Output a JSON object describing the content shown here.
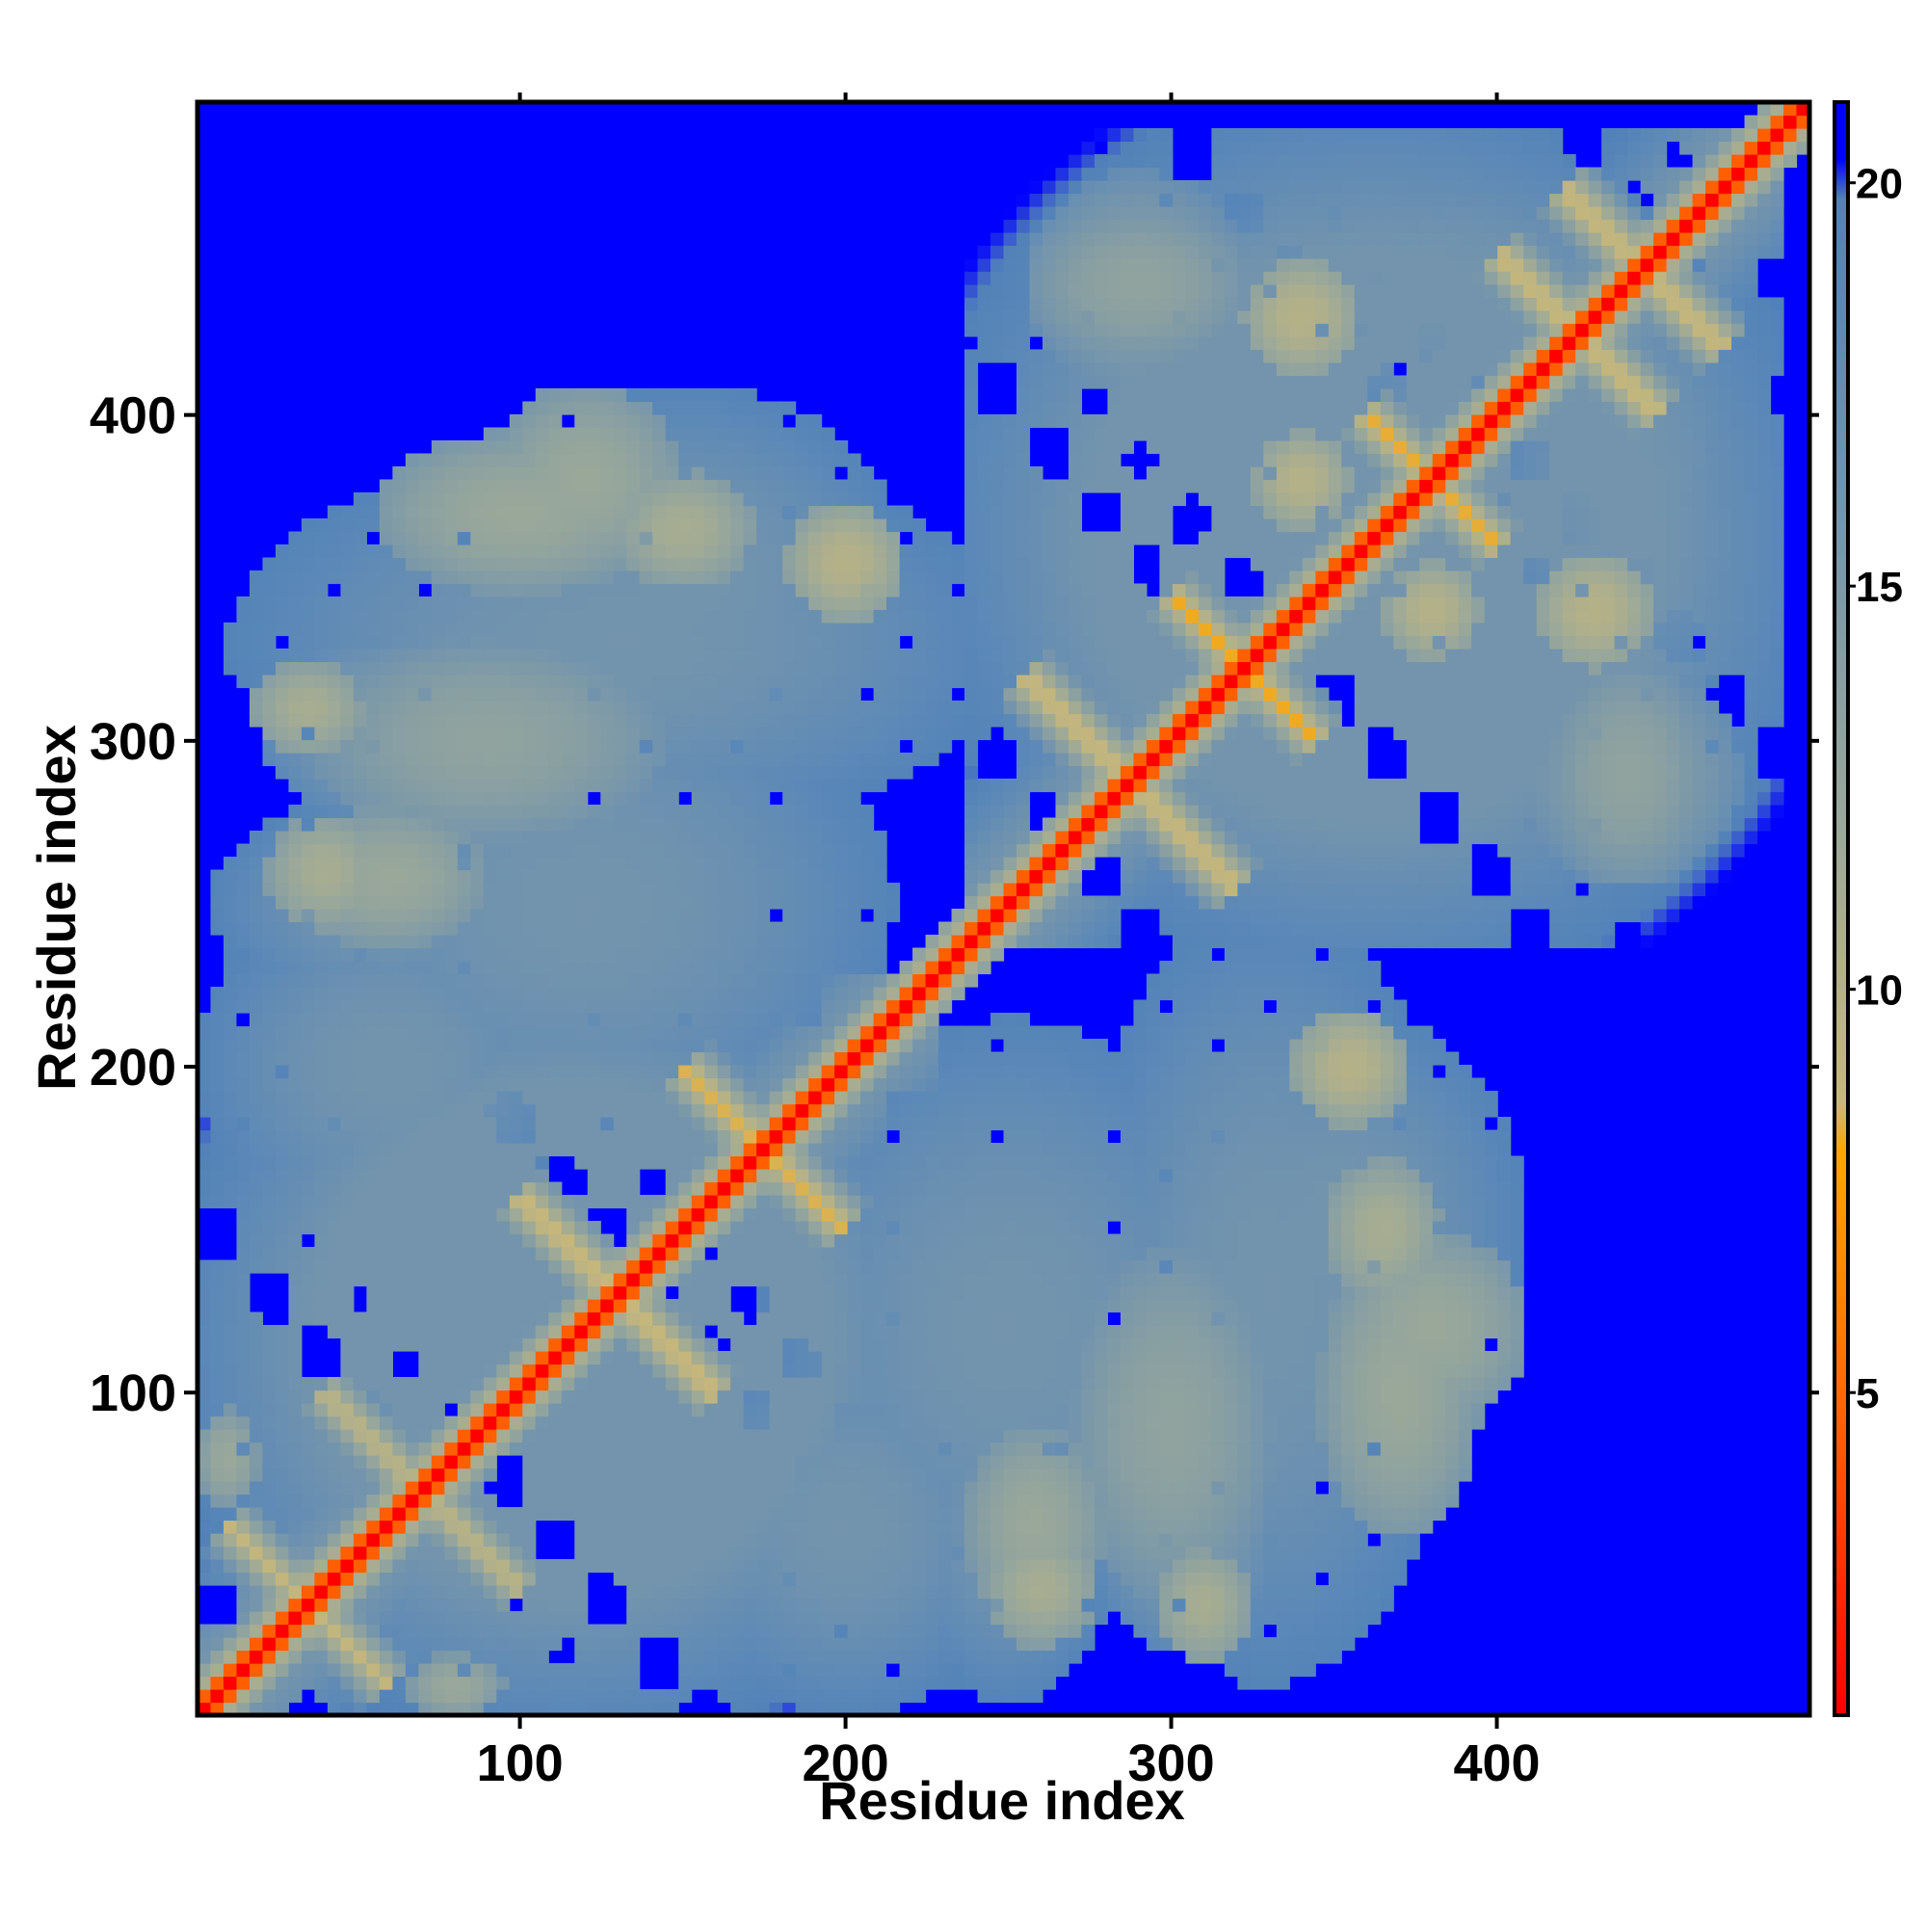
{
  "chart_data": {
    "type": "heatmap",
    "title": "",
    "xlabel": "Residue index",
    "ylabel": "Residue index",
    "xlim": [
      1,
      496
    ],
    "ylim": [
      1,
      496
    ],
    "x_ticks": [
      100,
      200,
      300,
      400
    ],
    "y_ticks": [
      100,
      200,
      300,
      400
    ],
    "colorbar": {
      "range": [
        1,
        21
      ],
      "ticks": [
        5,
        10,
        15,
        20
      ],
      "stops": [
        {
          "value": 1,
          "color": "#ff0000"
        },
        {
          "value": 5,
          "color": "#ff6a00"
        },
        {
          "value": 8,
          "color": "#ffa500"
        },
        {
          "value": 8.6,
          "color": "#c8b87a"
        },
        {
          "value": 12,
          "color": "#9aa89a"
        },
        {
          "value": 18.5,
          "color": "#5b88b8"
        },
        {
          "value": 19.8,
          "color": "#5282b8"
        },
        {
          "value": 20.3,
          "color": "#0000ff"
        },
        {
          "value": 21,
          "color": "#0000ff"
        }
      ]
    },
    "background_value": 21,
    "colors": {
      "far": "#0000ff",
      "mid": "#5b88b8",
      "near": "#ff0000",
      "contact": "#ffa500"
    },
    "symmetric": true,
    "diagonal": {
      "from": 1,
      "to": 496,
      "value": 1
    },
    "contact_blobs": [
      {
        "x": 120,
        "y": 250,
        "rx": 95,
        "ry": 78,
        "value": 16
      },
      {
        "x": 130,
        "y": 330,
        "rx": 120,
        "ry": 60,
        "value": 16
      },
      {
        "x": 90,
        "y": 300,
        "rx": 55,
        "ry": 32,
        "value": 13
      },
      {
        "x": 60,
        "y": 258,
        "rx": 30,
        "ry": 22,
        "value": 12
      },
      {
        "x": 100,
        "y": 370,
        "rx": 45,
        "ry": 25,
        "value": 12
      },
      {
        "x": 150,
        "y": 365,
        "rx": 22,
        "ry": 18,
        "value": 11
      },
      {
        "x": 200,
        "y": 355,
        "rx": 18,
        "ry": 18,
        "value": 10
      },
      {
        "x": 250,
        "y": 60,
        "rx": 35,
        "ry": 55,
        "value": 16
      },
      {
        "x": 305,
        "y": 60,
        "rx": 30,
        "ry": 40,
        "value": 15
      },
      {
        "x": 260,
        "y": 40,
        "rx": 18,
        "ry": 18,
        "value": 11
      },
      {
        "x": 310,
        "y": 35,
        "rx": 15,
        "ry": 18,
        "value": 11
      },
      {
        "x": 350,
        "y": 150,
        "rx": 60,
        "ry": 70,
        "value": 16
      },
      {
        "x": 380,
        "y": 120,
        "rx": 30,
        "ry": 30,
        "value": 12
      },
      {
        "x": 355,
        "y": 200,
        "rx": 15,
        "ry": 15,
        "value": 10
      },
      {
        "x": 380,
        "y": 440,
        "rx": 80,
        "ry": 45,
        "value": 16
      },
      {
        "x": 290,
        "y": 440,
        "rx": 35,
        "ry": 25,
        "value": 13
      },
      {
        "x": 440,
        "y": 290,
        "rx": 35,
        "ry": 35,
        "value": 14
      },
      {
        "x": 430,
        "y": 340,
        "rx": 18,
        "ry": 18,
        "value": 10
      },
      {
        "x": 380,
        "y": 340,
        "rx": 15,
        "ry": 15,
        "value": 10
      },
      {
        "x": 10,
        "y": 80,
        "rx": 10,
        "ry": 15,
        "value": 12
      },
      {
        "x": 60,
        "y": 200,
        "rx": 60,
        "ry": 55,
        "value": 16
      }
    ],
    "antiparallel_strands": [
      {
        "x1": 10,
        "y1": 60,
        "x2": 60,
        "y2": 10,
        "width": 4,
        "value": 9
      },
      {
        "x1": 40,
        "y1": 100,
        "x2": 100,
        "y2": 40,
        "width": 4,
        "value": 9
      },
      {
        "x1": 100,
        "y1": 160,
        "x2": 160,
        "y2": 100,
        "width": 4,
        "value": 8
      },
      {
        "x1": 150,
        "y1": 200,
        "x2": 200,
        "y2": 150,
        "width": 4,
        "value": 8
      },
      {
        "x1": 255,
        "y1": 320,
        "x2": 320,
        "y2": 255,
        "width": 4,
        "value": 8
      },
      {
        "x1": 300,
        "y1": 345,
        "x2": 345,
        "y2": 300,
        "width": 4,
        "value": 8
      },
      {
        "x1": 360,
        "y1": 400,
        "x2": 400,
        "y2": 360,
        "width": 4,
        "value": 8
      },
      {
        "x1": 400,
        "y1": 450,
        "x2": 450,
        "y2": 400,
        "width": 4,
        "value": 8
      },
      {
        "x1": 420,
        "y1": 470,
        "x2": 470,
        "y2": 420,
        "width": 4,
        "value": 8
      }
    ],
    "local_domains": [
      {
        "from": 1,
        "to": 230,
        "value": 16
      },
      {
        "from": 235,
        "to": 490,
        "value": 16
      }
    ]
  }
}
